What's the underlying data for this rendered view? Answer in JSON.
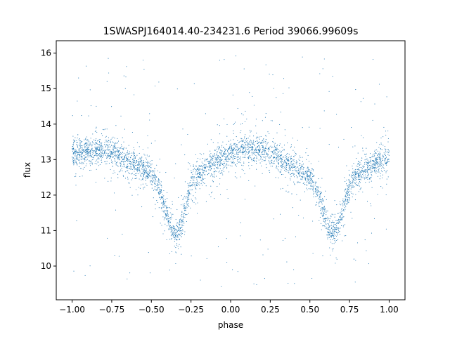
{
  "chart_data": {
    "type": "scatter",
    "title": "1SWASPJ164014.40-234231.6 Period 39066.99609s",
    "xlabel": "phase",
    "ylabel": "flux",
    "xlim": [
      -1.1,
      1.1
    ],
    "ylim": [
      9.05,
      16.35
    ],
    "xticks": [
      -1.0,
      -0.75,
      -0.5,
      -0.25,
      0.0,
      0.25,
      0.5,
      0.75,
      1.0
    ],
    "xtick_labels": [
      "−1.00",
      "−0.75",
      "−0.50",
      "−0.25",
      "0.00",
      "0.25",
      "0.50",
      "0.75",
      "1.00"
    ],
    "yticks": [
      10,
      11,
      12,
      13,
      14,
      15,
      16
    ],
    "ytick_labels": [
      "10",
      "11",
      "12",
      "13",
      "14",
      "15",
      "16"
    ],
    "grid": false,
    "legend": "none",
    "point_color": "#1f77b4",
    "light_curve": {
      "phase": [
        -1.0,
        -0.9,
        -0.8,
        -0.7,
        -0.6,
        -0.5,
        -0.45,
        -0.4,
        -0.37,
        -0.34,
        -0.3,
        -0.25,
        -0.2,
        -0.1,
        0.0,
        0.1,
        0.2,
        0.3,
        0.4,
        0.5,
        0.55,
        0.6,
        0.63,
        0.66,
        0.7,
        0.75,
        0.8,
        0.9,
        1.0
      ],
      "flux": [
        13.15,
        13.25,
        13.3,
        13.1,
        12.85,
        12.6,
        12.2,
        11.4,
        11.0,
        10.9,
        11.3,
        12.3,
        12.6,
        12.95,
        13.15,
        13.3,
        13.3,
        13.1,
        12.8,
        12.5,
        12.0,
        11.3,
        10.95,
        10.95,
        11.4,
        12.3,
        12.55,
        12.85,
        13.1
      ]
    }
  }
}
